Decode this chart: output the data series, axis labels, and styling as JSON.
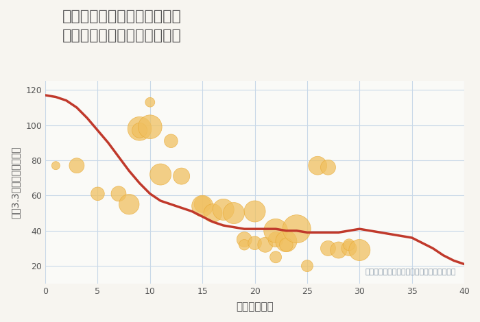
{
  "title": "兵庫県姫路市大津区天神町の\n築年数別中古マンション価格",
  "xlabel": "築年数（年）",
  "ylabel": "坪（3.3㎡）単価（万円）",
  "annotation": "円の大きさは、取引のあった物件面積を示す",
  "bg_color": "#f7f5f0",
  "plot_bg_color": "#fafaf7",
  "grid_color": "#c8d8e8",
  "line_color": "#c0392b",
  "scatter_color": "#f0c060",
  "scatter_edge_color": "#e8a830",
  "xlim": [
    0,
    40
  ],
  "ylim": [
    10,
    125
  ],
  "xticks": [
    0,
    5,
    10,
    15,
    20,
    25,
    30,
    35,
    40
  ],
  "yticks": [
    20,
    40,
    60,
    80,
    100,
    120
  ],
  "line_x": [
    0,
    1,
    2,
    3,
    4,
    5,
    6,
    7,
    8,
    9,
    10,
    11,
    12,
    13,
    14,
    15,
    16,
    17,
    18,
    19,
    20,
    21,
    22,
    23,
    24,
    25,
    26,
    27,
    28,
    29,
    30,
    31,
    32,
    33,
    34,
    35,
    36,
    37,
    38,
    39,
    40
  ],
  "line_y": [
    117,
    116,
    114,
    110,
    104,
    97,
    90,
    82,
    74,
    67,
    61,
    57,
    55,
    53,
    51,
    48,
    45,
    43,
    42,
    41,
    41,
    41,
    41,
    40,
    40,
    39,
    39,
    39,
    39,
    40,
    41,
    40,
    39,
    38,
    37,
    36,
    33,
    30,
    26,
    23,
    21
  ],
  "scatter_x": [
    1,
    3,
    5,
    7,
    8,
    9,
    9,
    10,
    10,
    11,
    12,
    13,
    15,
    15,
    16,
    17,
    18,
    19,
    19,
    20,
    20,
    21,
    22,
    22,
    22,
    23,
    23,
    24,
    25,
    26,
    27,
    27,
    28,
    29,
    29,
    30
  ],
  "scatter_y": [
    77,
    77,
    61,
    61,
    55,
    98,
    97,
    99,
    113,
    72,
    91,
    71,
    55,
    54,
    50,
    52,
    50,
    35,
    32,
    51,
    33,
    32,
    35,
    25,
    40,
    34,
    32,
    41,
    20,
    77,
    76,
    30,
    29,
    30,
    32,
    29
  ],
  "scatter_size": [
    30,
    100,
    80,
    100,
    180,
    250,
    100,
    250,
    40,
    200,
    80,
    120,
    120,
    200,
    150,
    200,
    200,
    100,
    50,
    200,
    80,
    100,
    100,
    60,
    250,
    200,
    80,
    350,
    60,
    150,
    100,
    100,
    120,
    100,
    60,
    200
  ]
}
